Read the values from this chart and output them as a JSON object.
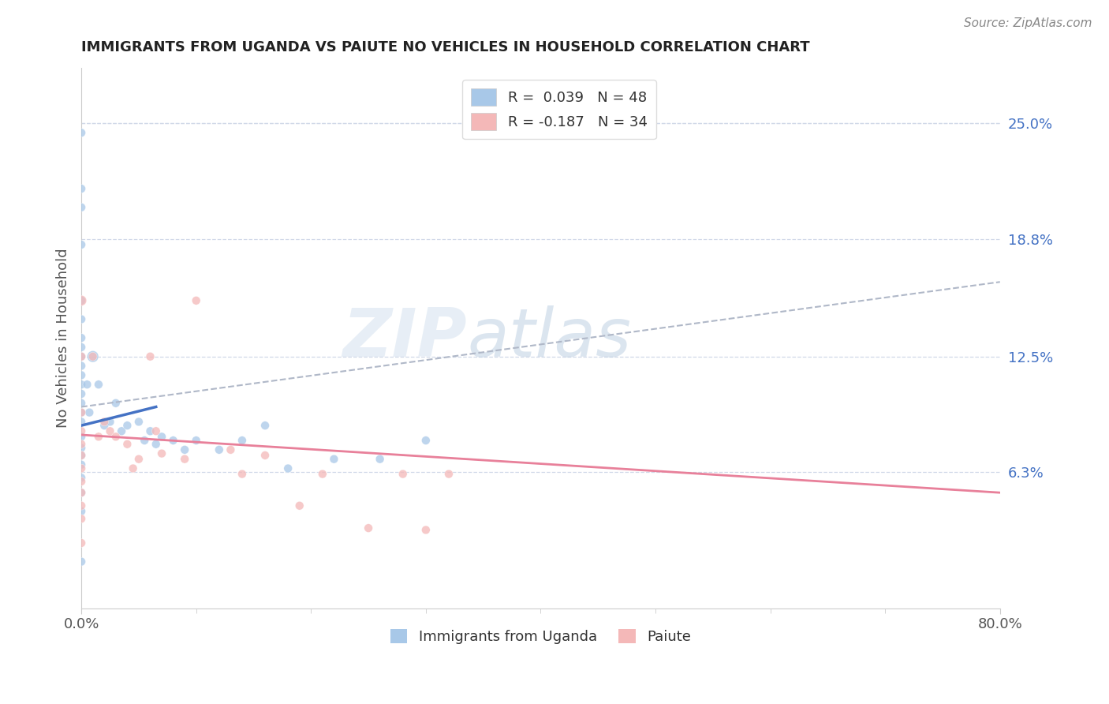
{
  "title": "IMMIGRANTS FROM UGANDA VS PAIUTE NO VEHICLES IN HOUSEHOLD CORRELATION CHART",
  "source_text": "Source: ZipAtlas.com",
  "ylabel": "No Vehicles in Household",
  "ylabel_ticks_right": [
    "25.0%",
    "18.8%",
    "12.5%",
    "6.3%"
  ],
  "ylabel_ticks_right_vals": [
    0.25,
    0.188,
    0.125,
    0.063
  ],
  "xlim": [
    0.0,
    0.8
  ],
  "ylim": [
    -0.01,
    0.28
  ],
  "legend_label1": "R =  0.039   N = 48",
  "legend_label2": "R = -0.187   N = 34",
  "legend_label_bottom1": "Immigrants from Uganda",
  "legend_label_bottom2": "Paiute",
  "blue_color": "#a8c8e8",
  "pink_color": "#f4b8b8",
  "blue_line_color": "#4472c4",
  "pink_line_color": "#e8809a",
  "dashed_line_color": "#b0b8c8",
  "blue_scatter_x": [
    0.0,
    0.0,
    0.0,
    0.0,
    0.0,
    0.0,
    0.0,
    0.0,
    0.0,
    0.0,
    0.0,
    0.0,
    0.0,
    0.0,
    0.0,
    0.0,
    0.0,
    0.0,
    0.0,
    0.0,
    0.0,
    0.0,
    0.0,
    0.0,
    0.005,
    0.007,
    0.01,
    0.015,
    0.02,
    0.025,
    0.03,
    0.035,
    0.04,
    0.05,
    0.055,
    0.06,
    0.065,
    0.07,
    0.08,
    0.09,
    0.1,
    0.12,
    0.14,
    0.16,
    0.18,
    0.22,
    0.26,
    0.3
  ],
  "blue_scatter_y": [
    0.245,
    0.215,
    0.205,
    0.185,
    0.155,
    0.145,
    0.135,
    0.13,
    0.125,
    0.12,
    0.115,
    0.11,
    0.105,
    0.1,
    0.095,
    0.09,
    0.082,
    0.076,
    0.072,
    0.067,
    0.06,
    0.052,
    0.042,
    0.015,
    0.11,
    0.095,
    0.125,
    0.11,
    0.088,
    0.09,
    0.1,
    0.085,
    0.088,
    0.09,
    0.08,
    0.085,
    0.078,
    0.082,
    0.08,
    0.075,
    0.08,
    0.075,
    0.08,
    0.088,
    0.065,
    0.07,
    0.07,
    0.08
  ],
  "blue_scatter_sizes": [
    60,
    60,
    60,
    60,
    60,
    60,
    60,
    60,
    60,
    60,
    60,
    60,
    60,
    60,
    60,
    60,
    60,
    60,
    60,
    60,
    60,
    60,
    60,
    60,
    60,
    60,
    110,
    60,
    60,
    60,
    60,
    60,
    60,
    60,
    60,
    60,
    60,
    60,
    60,
    60,
    60,
    60,
    60,
    60,
    60,
    60,
    60,
    60
  ],
  "pink_scatter_x": [
    0.0,
    0.0,
    0.0,
    0.0,
    0.0,
    0.0,
    0.0,
    0.0,
    0.0,
    0.0,
    0.0,
    0.0,
    0.01,
    0.015,
    0.02,
    0.025,
    0.03,
    0.04,
    0.045,
    0.05,
    0.06,
    0.065,
    0.07,
    0.09,
    0.1,
    0.13,
    0.14,
    0.16,
    0.19,
    0.21,
    0.25,
    0.28,
    0.3,
    0.32
  ],
  "pink_scatter_y": [
    0.155,
    0.125,
    0.095,
    0.085,
    0.078,
    0.072,
    0.065,
    0.058,
    0.052,
    0.045,
    0.038,
    0.025,
    0.125,
    0.082,
    0.09,
    0.085,
    0.082,
    0.078,
    0.065,
    0.07,
    0.125,
    0.085,
    0.073,
    0.07,
    0.155,
    0.075,
    0.062,
    0.072,
    0.045,
    0.062,
    0.033,
    0.062,
    0.032,
    0.062
  ],
  "pink_scatter_sizes": [
    90,
    60,
    60,
    60,
    60,
    60,
    60,
    60,
    60,
    60,
    60,
    60,
    60,
    60,
    60,
    60,
    60,
    60,
    60,
    60,
    60,
    60,
    60,
    60,
    60,
    60,
    60,
    60,
    60,
    60,
    60,
    60,
    60,
    60
  ],
  "blue_trend_x": [
    0.0,
    0.065
  ],
  "blue_trend_y": [
    0.088,
    0.098
  ],
  "pink_trend_x": [
    0.0,
    0.8
  ],
  "pink_trend_y": [
    0.083,
    0.052
  ],
  "dashed_trend_x": [
    0.0,
    0.8
  ],
  "dashed_trend_y": [
    0.098,
    0.165
  ]
}
